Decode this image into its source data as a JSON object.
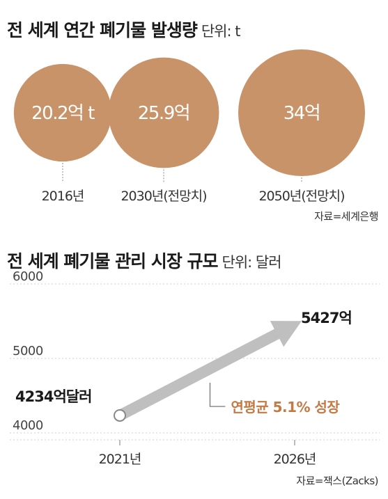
{
  "colors": {
    "bubble": "#c9936a",
    "arrow": "#bfbfbf",
    "accent": "#c47a44",
    "text": "#222222",
    "dashed": "#888888"
  },
  "chart_data": [
    {
      "type": "bubble",
      "title": "전 세계 연간 폐기물 발생량",
      "unit": "단위: t",
      "categories": [
        "2016년",
        "2030년(전망치)",
        "2050년(전망치)"
      ],
      "values": [
        20.2,
        25.9,
        34
      ],
      "value_labels": [
        "20.2억 t",
        "25.9억",
        "34억"
      ],
      "source": "자료=세계은행"
    },
    {
      "type": "line",
      "title": "전 세계 폐기물 관리 시장 규모",
      "unit": "단위: 달러",
      "x": [
        "2021년",
        "2026년"
      ],
      "values": [
        4234,
        5427
      ],
      "value_labels": [
        "4234억달러",
        "5427억"
      ],
      "y_ticks": [
        "6000",
        "5000",
        "4000"
      ],
      "ylim": [
        4000,
        6000
      ],
      "annotation": "연평균 5.1% 성장",
      "source": "자료=잭스(Zacks)"
    }
  ]
}
